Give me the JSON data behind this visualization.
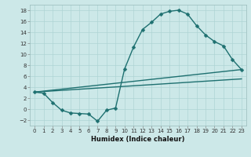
{
  "xlabel": "Humidex (Indice chaleur)",
  "bg_color": "#cce8e8",
  "line_color": "#1e7070",
  "xlim": [
    -0.5,
    23.5
  ],
  "ylim": [
    -3,
    19
  ],
  "xticks": [
    0,
    1,
    2,
    3,
    4,
    5,
    6,
    7,
    8,
    9,
    10,
    11,
    12,
    13,
    14,
    15,
    16,
    17,
    18,
    19,
    20,
    21,
    22,
    23
  ],
  "yticks": [
    -2,
    0,
    2,
    4,
    6,
    8,
    10,
    12,
    14,
    16,
    18
  ],
  "curve1_x": [
    0,
    1,
    2,
    3,
    4,
    5,
    6,
    7,
    8,
    9,
    10,
    11,
    12,
    13,
    14,
    15,
    16,
    17,
    18,
    19,
    20,
    21,
    22,
    23
  ],
  "curve1_y": [
    3.1,
    2.9,
    1.2,
    -0.2,
    -0.7,
    -0.8,
    -0.9,
    -2.2,
    -0.2,
    0.2,
    7.3,
    11.3,
    14.5,
    15.8,
    17.3,
    17.8,
    18.0,
    17.3,
    15.2,
    13.5,
    12.3,
    11.5,
    9.0,
    7.2
  ],
  "curve2_x": [
    0,
    23
  ],
  "curve2_y": [
    3.1,
    7.2
  ],
  "curve3_x": [
    0,
    23
  ],
  "curve3_y": [
    3.1,
    5.5
  ],
  "marker": "D",
  "markersize": 2.5,
  "linewidth": 1.0,
  "grid_color": "#aed4d4",
  "xlabel_fontsize": 6.0,
  "tick_fontsize": 5.0
}
